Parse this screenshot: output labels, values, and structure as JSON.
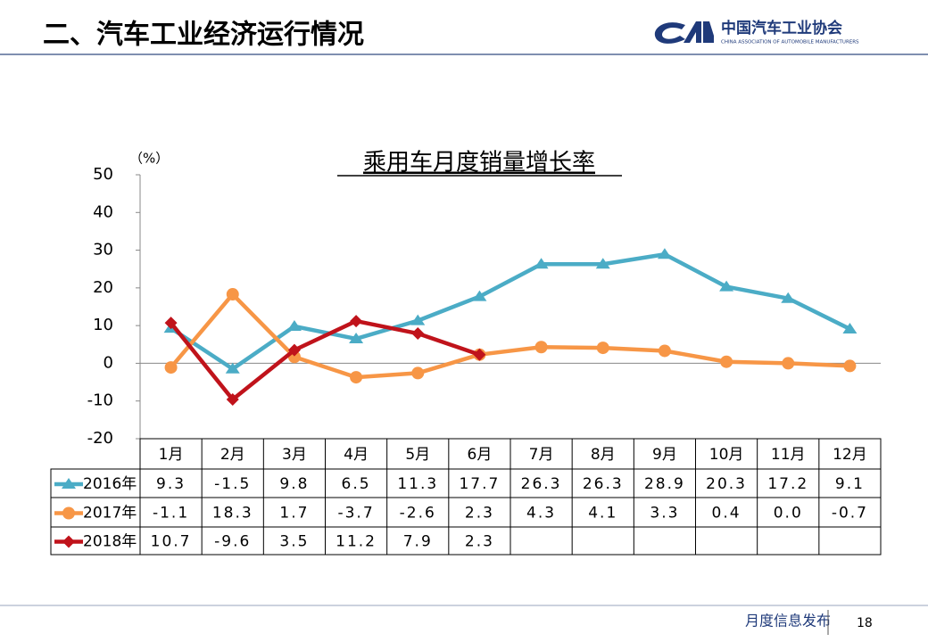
{
  "header": {
    "title": "二、汽车工业经济运行情况",
    "logo_cn": "中国汽车工业协会",
    "logo_en": "CHINA ASSOCIATION OF AUTOMOBILE MANUFACTURERS"
  },
  "footer": {
    "text": "月度信息发布",
    "page": "18"
  },
  "chart_data": {
    "type": "line",
    "title": "乘用车月度销量增长率",
    "y_label": "（%）",
    "categories": [
      "1月",
      "2月",
      "3月",
      "4月",
      "5月",
      "6月",
      "7月",
      "8月",
      "9月",
      "10月",
      "11月",
      "12月"
    ],
    "ylim": [
      -20,
      50
    ],
    "yticks": [
      -20,
      -10,
      0,
      10,
      20,
      30,
      40,
      50
    ],
    "grid": false,
    "series": [
      {
        "name": "2016年",
        "color": "#4bacc6",
        "marker": "triangle",
        "values": [
          9.3,
          -1.5,
          9.8,
          6.5,
          11.3,
          17.7,
          26.3,
          26.3,
          28.9,
          20.3,
          17.2,
          9.1
        ],
        "value_labels": [
          "9.3",
          "-1.5",
          "9.8",
          "6.5",
          "11.3",
          "17.7",
          "26.3",
          "26.3",
          "28.9",
          "20.3",
          "17.2",
          "9.1"
        ]
      },
      {
        "name": "2017年",
        "color": "#f79646",
        "marker": "circle",
        "values": [
          -1.1,
          18.3,
          1.7,
          -3.7,
          -2.6,
          2.3,
          4.3,
          4.1,
          3.3,
          0.4,
          0.0,
          -0.7
        ],
        "value_labels": [
          "-1.1",
          "18.3",
          "1.7",
          "-3.7",
          "-2.6",
          "2.3",
          "4.3",
          "4.1",
          "3.3",
          "0.4",
          "0.0",
          "-0.7"
        ]
      },
      {
        "name": "2018年",
        "color": "#c0131b",
        "marker": "diamond",
        "values": [
          10.7,
          -9.6,
          3.5,
          11.2,
          7.9,
          2.3,
          null,
          null,
          null,
          null,
          null,
          null
        ],
        "value_labels": [
          "10.7",
          "-9.6",
          "3.5",
          "11.2",
          "7.9",
          "2.3",
          null,
          null,
          null,
          null,
          null,
          null
        ]
      }
    ]
  }
}
